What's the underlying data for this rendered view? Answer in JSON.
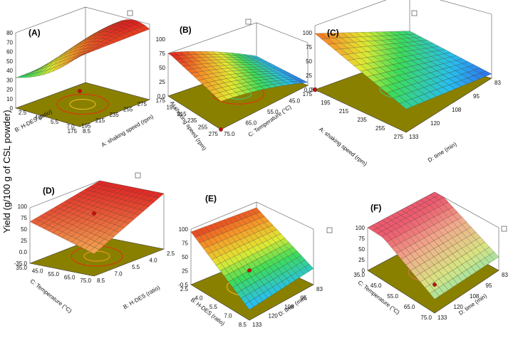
{
  "figure": {
    "y_axis_label": "Yield (g/100 g of CSL powder)"
  },
  "chart_data": [
    {
      "type": "surface",
      "panel": "(A)",
      "z_ticks": [
        "0",
        "10",
        "20",
        "30",
        "40",
        "50",
        "60",
        "70",
        "80"
      ],
      "x_factor": "A: shaking speed (rpm)",
      "x_ticks": [
        "175",
        "195",
        "215",
        "235",
        "255",
        "275"
      ],
      "y_factor": "B: H-DES (ratio)",
      "y_ticks": [
        "2.5",
        "4.0",
        "5.5",
        "7.0",
        "8.5"
      ],
      "colormap": "blue-green-yellow-red",
      "contour_colors": [
        "#f0c020",
        "#e03010"
      ],
      "floor_color": "#8a8000"
    },
    {
      "type": "surface",
      "panel": "(B)",
      "z_ticks": [
        "0.0",
        "25",
        "50",
        "75",
        "100"
      ],
      "x_factor": "A: shaking speed (rpm)",
      "x_ticks": [
        "175",
        "195",
        "215",
        "235",
        "255",
        "275"
      ],
      "y_factor": "C: Temperature (°C)",
      "y_ticks": [
        "75.0",
        "65.0",
        "55.0",
        "45.0",
        "35.0"
      ],
      "colormap": "blue-green-yellow-red",
      "contour_colors": [
        "#3ad07a",
        "#e03010"
      ],
      "floor_color": "#8a8000"
    },
    {
      "type": "surface",
      "panel": "(C)",
      "z_ticks": [
        "0.0",
        "25",
        "50",
        "75",
        "100"
      ],
      "x_factor": "A: shaking speed (rpm)",
      "x_ticks": [
        "175",
        "195",
        "215",
        "235",
        "255",
        "275"
      ],
      "y_factor": "D: time (min)",
      "y_ticks": [
        "133",
        "120",
        "108",
        "95",
        "83"
      ],
      "colormap": "blue-green-yellow-red",
      "contour_colors": [
        "#2ab0e0",
        "#3ad07a"
      ],
      "floor_color": "#8a8000"
    },
    {
      "type": "surface",
      "panel": "(D)",
      "z_ticks": [
        "-35.0",
        "0.0",
        "25",
        "50",
        "75",
        "100"
      ],
      "x_factor": "C: Temperature (°C)",
      "x_ticks": [
        "35.0",
        "45.0",
        "55.0",
        "65.0",
        "75.0"
      ],
      "y_factor": "B: H-DES (ratio)",
      "y_ticks": [
        "8.5",
        "7.0",
        "5.5",
        "4.0",
        "2.5"
      ],
      "colormap": "yellow-red",
      "contour_colors": [
        "#f0a020",
        "#e03010"
      ],
      "floor_color": "#8a8000"
    },
    {
      "type": "surface",
      "panel": "(E)",
      "z_ticks": [
        "-0.5",
        "25",
        "50",
        "75",
        "100"
      ],
      "x_factor": "B: H-DES (ratio)",
      "x_ticks": [
        "2.5",
        "4.0",
        "5.5",
        "7.0",
        "8.5"
      ],
      "y_factor": "D: time (min)",
      "y_ticks": [
        "133",
        "120",
        "108",
        "95",
        "83"
      ],
      "colormap": "blue-green-yellow-red",
      "contour_colors": [
        "#3ad07a",
        "#f0c020"
      ],
      "floor_color": "#8a8000"
    },
    {
      "type": "surface",
      "panel": "(F)",
      "z_ticks": [
        "0",
        "25",
        "50",
        "75",
        "100"
      ],
      "x_factor": "C: Temperature (°C)",
      "x_ticks": [
        "35.0",
        "45.0",
        "55.0",
        "65.0",
        "75.0"
      ],
      "y_factor": "D: time (min)",
      "y_ticks": [
        "133",
        "120",
        "108",
        "95",
        "83"
      ],
      "colormap": "cyan-yellow-red",
      "contour_colors": [
        "#f0c020",
        "#e07050"
      ],
      "floor_color": "#8a8000"
    }
  ]
}
